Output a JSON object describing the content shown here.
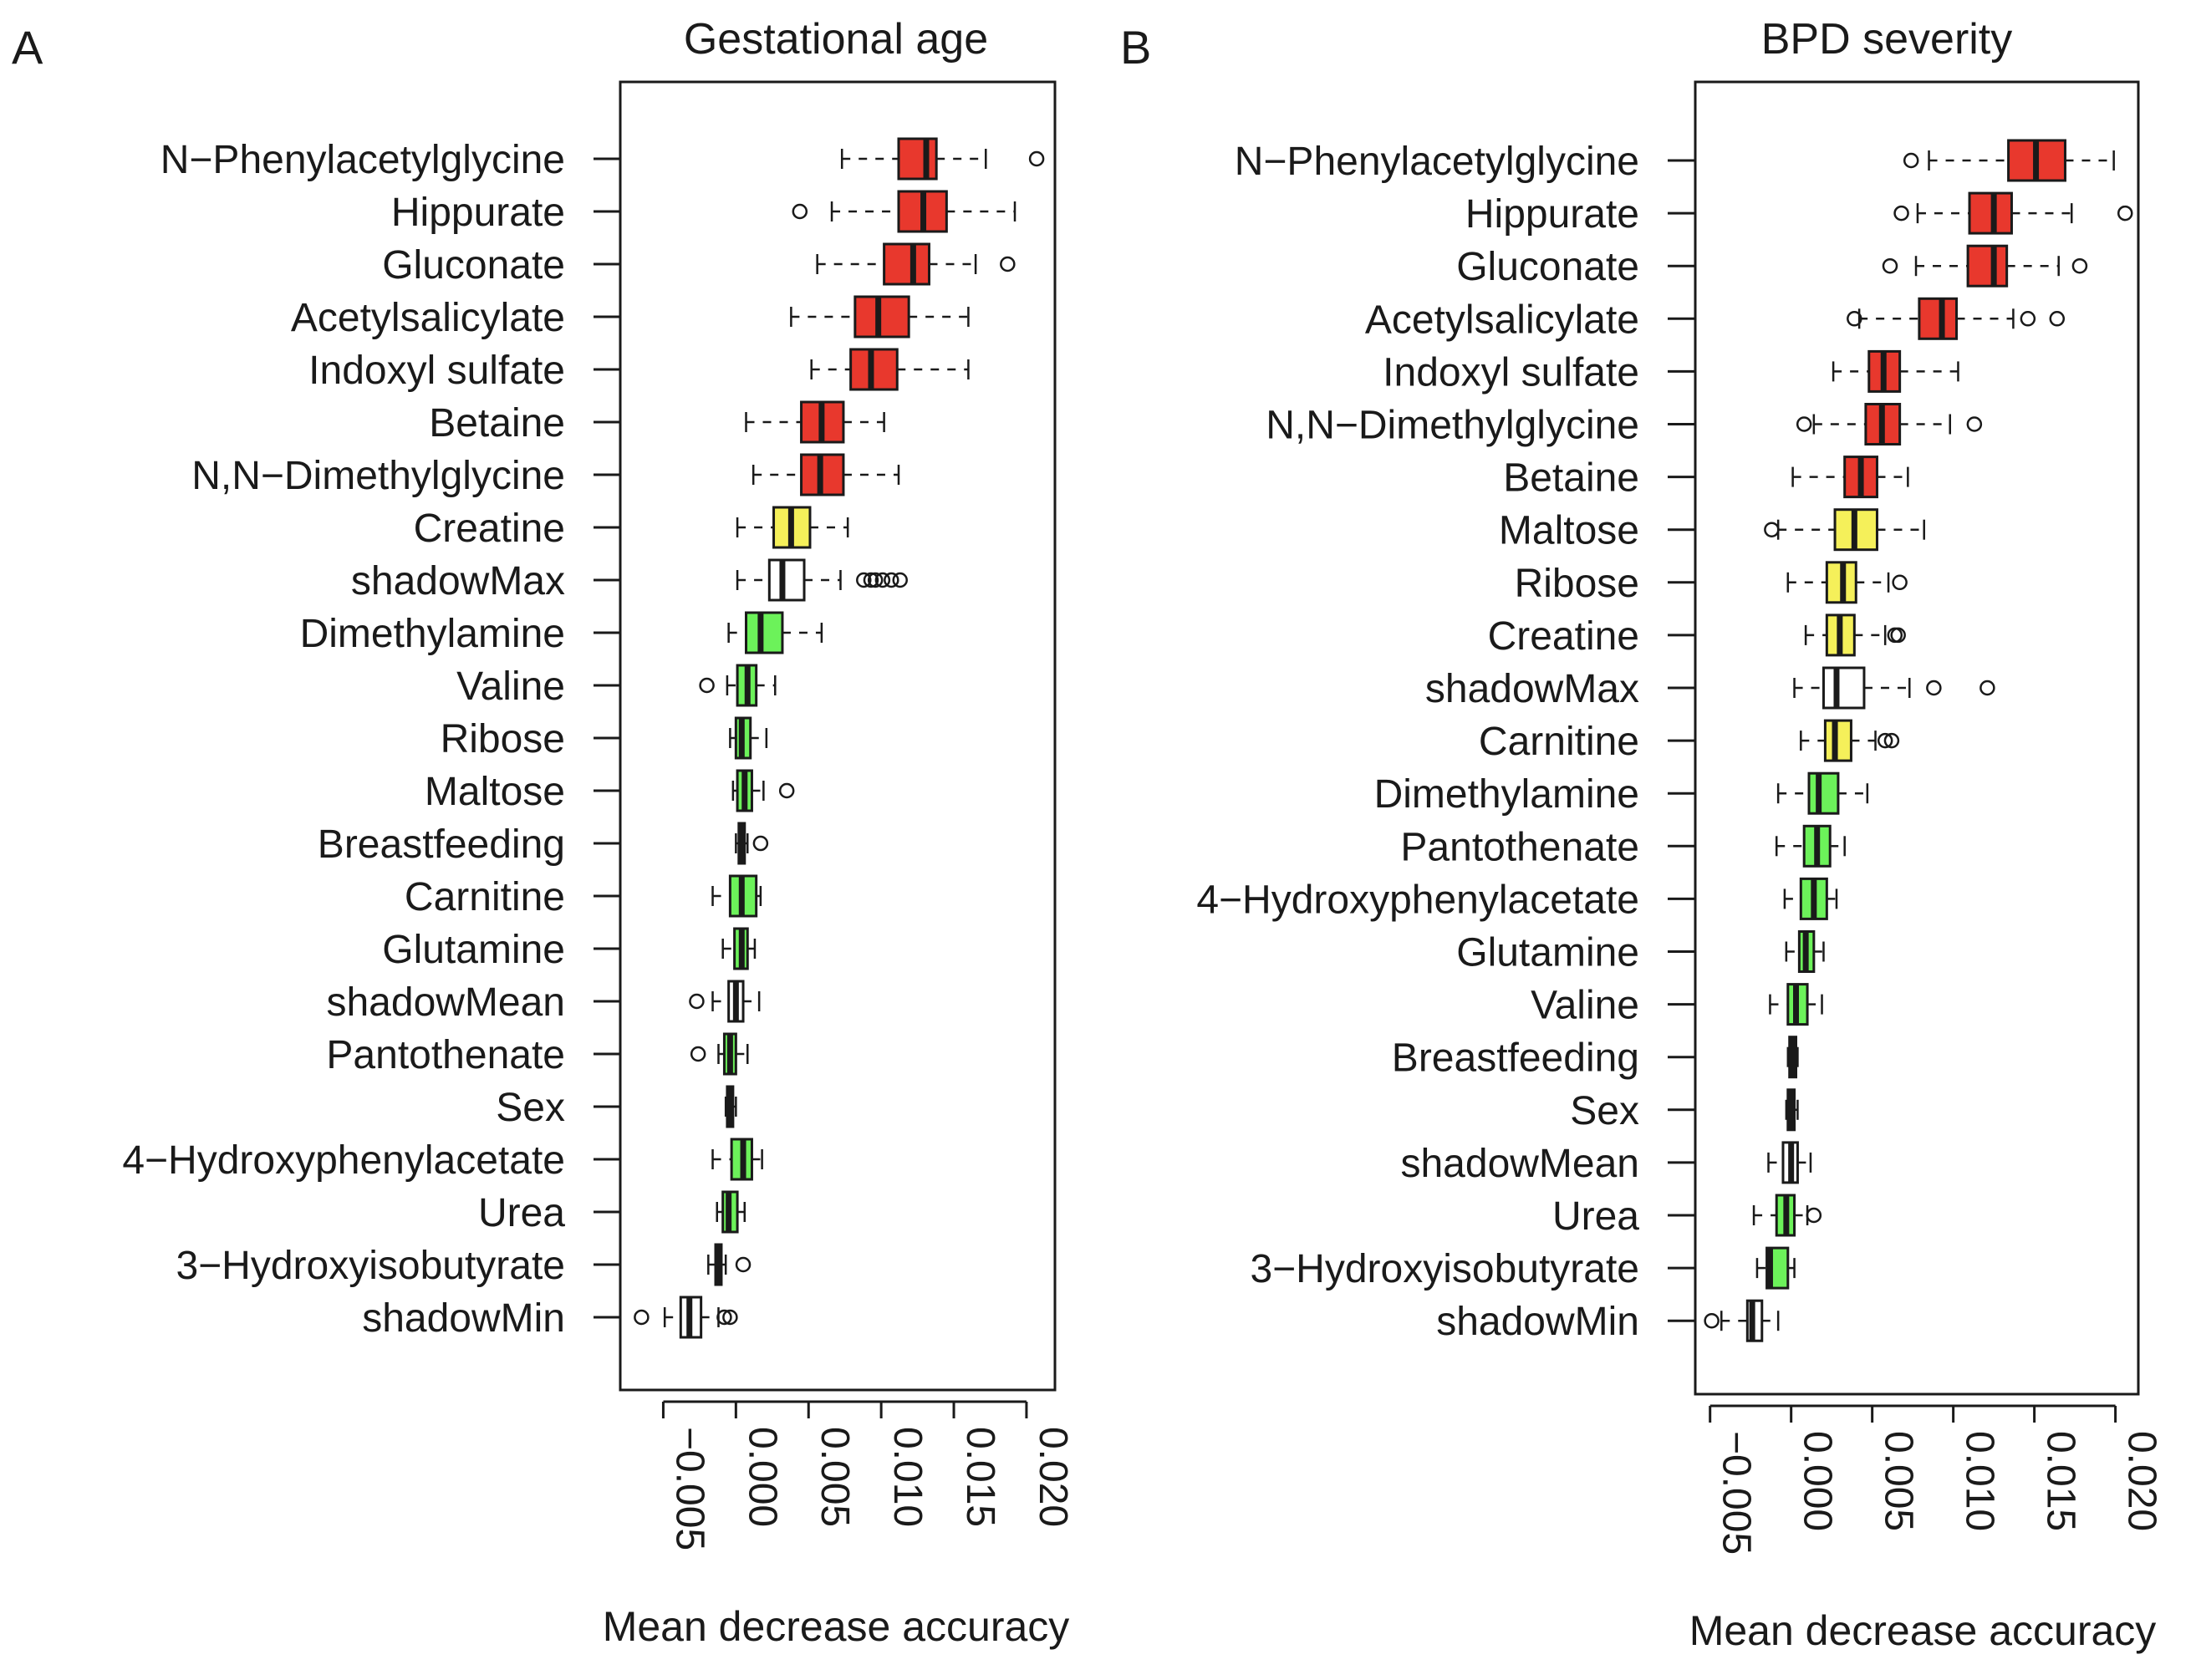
{
  "colors": {
    "confirmed": "#e8382d",
    "tentative": "#f5f05a",
    "rejected": "#6cf25a",
    "shadow": "#ffffff",
    "stroke": "#1a1a1a"
  },
  "chart_data": [
    {
      "panel_label": "A",
      "type": "boxplot",
      "orientation": "horizontal",
      "title": "Gestational age",
      "xlabel": "Mean decrease accuracy",
      "ylabel": "",
      "xlim": [
        -0.0075,
        0.0215
      ],
      "ticks": [
        -0.005,
        0.0,
        0.005,
        0.01,
        0.015,
        0.02
      ],
      "tick_labels": [
        "−0.005",
        "0.000",
        "0.005",
        "0.010",
        "0.015",
        "0.020"
      ],
      "series": [
        {
          "name": "N−Phenylacetylglycine",
          "category": "confirmed",
          "whisker_low": 0.0073,
          "q1": 0.0112,
          "median": 0.0131,
          "q3": 0.0138,
          "whisker_high": 0.0172,
          "outliers": [
            0.0207
          ]
        },
        {
          "name": "Hippurate",
          "category": "confirmed",
          "whisker_low": 0.0066,
          "q1": 0.0112,
          "median": 0.0129,
          "q3": 0.0145,
          "whisker_high": 0.0192,
          "outliers": [
            0.0044
          ]
        },
        {
          "name": "Gluconate",
          "category": "confirmed",
          "whisker_low": 0.0056,
          "q1": 0.0102,
          "median": 0.0122,
          "q3": 0.0133,
          "whisker_high": 0.0165,
          "outliers": [
            0.0187
          ]
        },
        {
          "name": "Acetylsalicylate",
          "category": "confirmed",
          "whisker_low": 0.0038,
          "q1": 0.0082,
          "median": 0.0098,
          "q3": 0.0119,
          "whisker_high": 0.016,
          "outliers": []
        },
        {
          "name": "Indoxyl sulfate",
          "category": "confirmed",
          "whisker_low": 0.0052,
          "q1": 0.0079,
          "median": 0.0093,
          "q3": 0.0111,
          "whisker_high": 0.016,
          "outliers": []
        },
        {
          "name": "Betaine",
          "category": "confirmed",
          "whisker_low": 0.0007,
          "q1": 0.0045,
          "median": 0.0059,
          "q3": 0.0074,
          "whisker_high": 0.0102,
          "outliers": []
        },
        {
          "name": "N,N−Dimethylglycine",
          "category": "confirmed",
          "whisker_low": 0.0012,
          "q1": 0.0045,
          "median": 0.0058,
          "q3": 0.0074,
          "whisker_high": 0.0112,
          "outliers": []
        },
        {
          "name": "Creatine",
          "category": "tentative",
          "whisker_low": 0.0001,
          "q1": 0.0026,
          "median": 0.0038,
          "q3": 0.0051,
          "whisker_high": 0.0077,
          "outliers": []
        },
        {
          "name": "shadowMax",
          "category": "shadow",
          "whisker_low": 0.0001,
          "q1": 0.0023,
          "median": 0.0032,
          "q3": 0.0047,
          "whisker_high": 0.0072,
          "outliers": [
            0.0088,
            0.0093,
            0.0096,
            0.0101,
            0.0107,
            0.0113
          ]
        },
        {
          "name": "Dimethylamine",
          "category": "rejected",
          "whisker_low": -0.0005,
          "q1": 0.0007,
          "median": 0.0017,
          "q3": 0.0032,
          "whisker_high": 0.0059,
          "outliers": []
        },
        {
          "name": "Valine",
          "category": "rejected",
          "whisker_low": -0.0006,
          "q1": 0.0001,
          "median": 0.0008,
          "q3": 0.0014,
          "whisker_high": 0.0027,
          "outliers": [
            -0.002
          ]
        },
        {
          "name": "Ribose",
          "category": "rejected",
          "whisker_low": -0.0004,
          "q1": 0.0,
          "median": 0.0004,
          "q3": 0.001,
          "whisker_high": 0.0021,
          "outliers": []
        },
        {
          "name": "Maltose",
          "category": "rejected",
          "whisker_low": -0.0002,
          "q1": 0.0001,
          "median": 0.0006,
          "q3": 0.0011,
          "whisker_high": 0.0019,
          "outliers": [
            0.0035
          ]
        },
        {
          "name": "Breastfeeding",
          "category": "rejected",
          "whisker_low": 0.0,
          "q1": 0.0002,
          "median": 0.0004,
          "q3": 0.0006,
          "whisker_high": 0.0008,
          "outliers": [
            0.0017
          ]
        },
        {
          "name": "Carnitine",
          "category": "rejected",
          "whisker_low": -0.0016,
          "q1": -0.0004,
          "median": 0.0004,
          "q3": 0.0014,
          "whisker_high": 0.0017,
          "outliers": []
        },
        {
          "name": "Glutamine",
          "category": "rejected",
          "whisker_low": -0.0009,
          "q1": -0.0001,
          "median": 0.0004,
          "q3": 0.0008,
          "whisker_high": 0.0013,
          "outliers": []
        },
        {
          "name": "shadowMean",
          "category": "shadow",
          "whisker_low": -0.0016,
          "q1": -0.0005,
          "median": 0.0,
          "q3": 0.0005,
          "whisker_high": 0.0016,
          "outliers": [
            -0.0027
          ]
        },
        {
          "name": "Pantothenate",
          "category": "rejected",
          "whisker_low": -0.0012,
          "q1": -0.0008,
          "median": -0.0004,
          "q3": 0.0,
          "whisker_high": 0.0008,
          "outliers": [
            -0.0026
          ]
        },
        {
          "name": "Sex",
          "category": "rejected",
          "whisker_low": -0.0007,
          "q1": -0.0006,
          "median": -0.0004,
          "q3": -0.0002,
          "whisker_high": 0.0,
          "outliers": []
        },
        {
          "name": "4−Hydroxyphenylacetate",
          "category": "rejected",
          "whisker_low": -0.0016,
          "q1": -0.0003,
          "median": 0.0005,
          "q3": 0.0011,
          "whisker_high": 0.0018,
          "outliers": []
        },
        {
          "name": "Urea",
          "category": "rejected",
          "whisker_low": -0.0013,
          "q1": -0.0009,
          "median": -0.0005,
          "q3": 0.0001,
          "whisker_high": 0.0006,
          "outliers": []
        },
        {
          "name": "3−Hydroxyisobutyrate",
          "category": "rejected",
          "whisker_low": -0.0019,
          "q1": -0.0014,
          "median": -0.0012,
          "q3": -0.001,
          "whisker_high": -0.0007,
          "outliers": [
            0.0005
          ]
        },
        {
          "name": "shadowMin",
          "category": "shadow",
          "whisker_low": -0.0049,
          "q1": -0.0038,
          "median": -0.0032,
          "q3": -0.0024,
          "whisker_high": -0.0012,
          "outliers": [
            -0.0065,
            -0.0008,
            -0.0004
          ]
        }
      ]
    },
    {
      "panel_label": "B",
      "type": "boxplot",
      "orientation": "horizontal",
      "title": "BPD severity",
      "xlabel": "Mean decrease accuracy",
      "ylabel": "",
      "xlim": [
        -0.0055,
        0.021
      ],
      "ticks": [
        -0.005,
        0.0,
        0.005,
        0.01,
        0.015,
        0.02
      ],
      "tick_labels": [
        "−0.005",
        "0.000",
        "0.005",
        "0.010",
        "0.015",
        "0.020"
      ],
      "series": [
        {
          "name": "N−Phenylacetylglycine",
          "category": "confirmed",
          "whisker_low": 0.0085,
          "q1": 0.0134,
          "median": 0.0151,
          "q3": 0.0169,
          "whisker_high": 0.0199,
          "outliers": [
            0.0074
          ]
        },
        {
          "name": "Hippurate",
          "category": "confirmed",
          "whisker_low": 0.0078,
          "q1": 0.011,
          "median": 0.0125,
          "q3": 0.0136,
          "whisker_high": 0.0173,
          "outliers": [
            0.0068,
            0.0206
          ]
        },
        {
          "name": "Gluconate",
          "category": "confirmed",
          "whisker_low": 0.0077,
          "q1": 0.0109,
          "median": 0.0125,
          "q3": 0.0133,
          "whisker_high": 0.0165,
          "outliers": [
            0.0061,
            0.0178
          ]
        },
        {
          "name": "Acetylsalicylate",
          "category": "confirmed",
          "whisker_low": 0.0042,
          "q1": 0.0079,
          "median": 0.0093,
          "q3": 0.0102,
          "whisker_high": 0.0137,
          "outliers": [
            0.0039,
            0.0146,
            0.0164
          ]
        },
        {
          "name": "Indoxyl sulfate",
          "category": "confirmed",
          "whisker_low": 0.0026,
          "q1": 0.0048,
          "median": 0.0057,
          "q3": 0.0067,
          "whisker_high": 0.0103,
          "outliers": []
        },
        {
          "name": "N,N−Dimethylglycine",
          "category": "confirmed",
          "whisker_low": 0.0014,
          "q1": 0.0046,
          "median": 0.0056,
          "q3": 0.0067,
          "whisker_high": 0.0098,
          "outliers": [
            0.0008,
            0.0113
          ]
        },
        {
          "name": "Betaine",
          "category": "confirmed",
          "whisker_low": 0.0001,
          "q1": 0.0033,
          "median": 0.0043,
          "q3": 0.0053,
          "whisker_high": 0.0072,
          "outliers": []
        },
        {
          "name": "Maltose",
          "category": "tentative",
          "whisker_low": -0.0008,
          "q1": 0.0027,
          "median": 0.0039,
          "q3": 0.0053,
          "whisker_high": 0.0082,
          "outliers": [
            -0.0012
          ]
        },
        {
          "name": "Ribose",
          "category": "tentative",
          "whisker_low": -0.0002,
          "q1": 0.0022,
          "median": 0.0032,
          "q3": 0.004,
          "whisker_high": 0.006,
          "outliers": [
            0.0067
          ]
        },
        {
          "name": "Creatine",
          "category": "tentative",
          "whisker_low": 0.0009,
          "q1": 0.0022,
          "median": 0.003,
          "q3": 0.0039,
          "whisker_high": 0.0058,
          "outliers": [
            0.0064,
            0.0066
          ]
        },
        {
          "name": "shadowMax",
          "category": "shadow",
          "whisker_low": 0.0002,
          "q1": 0.002,
          "median": 0.0028,
          "q3": 0.0045,
          "whisker_high": 0.0073,
          "outliers": [
            0.0088,
            0.0121
          ]
        },
        {
          "name": "Carnitine",
          "category": "tentative",
          "whisker_low": 0.0006,
          "q1": 0.0021,
          "median": 0.0027,
          "q3": 0.0037,
          "whisker_high": 0.0052,
          "outliers": [
            0.0058,
            0.0062
          ]
        },
        {
          "name": "Dimethylamine",
          "category": "rejected",
          "whisker_low": -0.0008,
          "q1": 0.0011,
          "median": 0.0017,
          "q3": 0.0029,
          "whisker_high": 0.0047,
          "outliers": []
        },
        {
          "name": "Pantothenate",
          "category": "rejected",
          "whisker_low": -0.0009,
          "q1": 0.0008,
          "median": 0.0016,
          "q3": 0.0024,
          "whisker_high": 0.0033,
          "outliers": []
        },
        {
          "name": "4−Hydroxyphenylacetate",
          "category": "rejected",
          "whisker_low": -0.0004,
          "q1": 0.0006,
          "median": 0.0014,
          "q3": 0.0022,
          "whisker_high": 0.0028,
          "outliers": []
        },
        {
          "name": "Glutamine",
          "category": "rejected",
          "whisker_low": -0.0003,
          "q1": 0.0005,
          "median": 0.0009,
          "q3": 0.0014,
          "whisker_high": 0.002,
          "outliers": []
        },
        {
          "name": "Valine",
          "category": "rejected",
          "whisker_low": -0.0013,
          "q1": -0.0002,
          "median": 0.0003,
          "q3": 0.001,
          "whisker_high": 0.0019,
          "outliers": []
        },
        {
          "name": "Breastfeeding",
          "category": "rejected",
          "whisker_low": -0.0002,
          "q1": -0.0001,
          "median": 0.0001,
          "q3": 0.0003,
          "whisker_high": 0.0004,
          "outliers": []
        },
        {
          "name": "Sex",
          "category": "rejected",
          "whisker_low": -0.0003,
          "q1": -0.0002,
          "median": 0.0,
          "q3": 0.0002,
          "whisker_high": 0.0004,
          "outliers": []
        },
        {
          "name": "shadowMean",
          "category": "shadow",
          "whisker_low": -0.0014,
          "q1": -0.0005,
          "median": 0.0,
          "q3": 0.0004,
          "whisker_high": 0.0012,
          "outliers": []
        },
        {
          "name": "Urea",
          "category": "rejected",
          "whisker_low": -0.0023,
          "q1": -0.0009,
          "median": -0.0003,
          "q3": 0.0002,
          "whisker_high": 0.001,
          "outliers": [
            0.0014
          ]
        },
        {
          "name": "3−Hydroxyisobutyrate",
          "category": "rejected",
          "whisker_low": -0.0021,
          "q1": -0.0015,
          "median": -0.0013,
          "q3": -0.0002,
          "whisker_high": 0.0002,
          "outliers": []
        },
        {
          "name": "shadowMin",
          "category": "shadow",
          "whisker_low": -0.0043,
          "q1": -0.0027,
          "median": -0.0024,
          "q3": -0.0018,
          "whisker_high": -0.0008,
          "outliers": [
            -0.0049
          ]
        }
      ]
    }
  ]
}
